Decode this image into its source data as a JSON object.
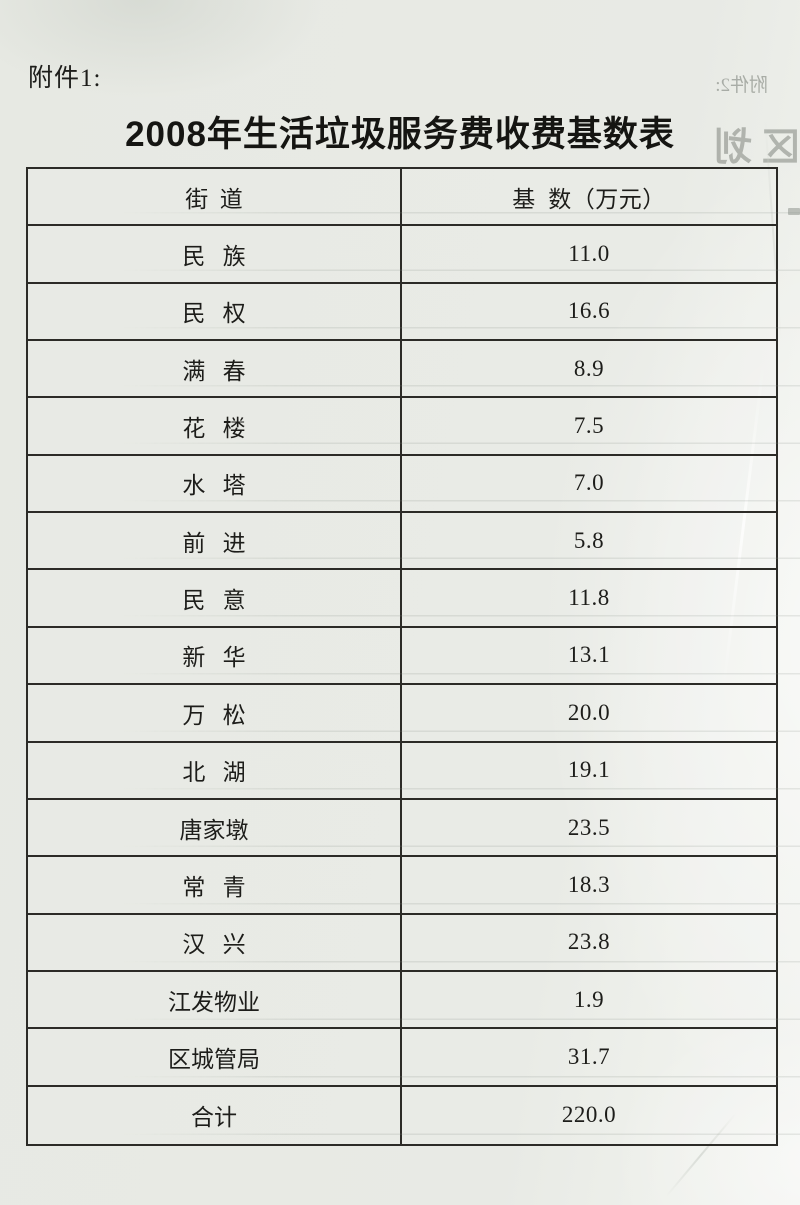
{
  "page": {
    "attachment_label": "附件1:",
    "title": "2008年生活垃圾服务费收费基数表"
  },
  "table": {
    "headers": {
      "street": "街  道",
      "base": "基  数（万元）"
    },
    "rows": [
      {
        "street": "民   族",
        "base": "11.0"
      },
      {
        "street": "民   权",
        "base": "16.6"
      },
      {
        "street": "满   春",
        "base": "8.9"
      },
      {
        "street": "花   楼",
        "base": "7.5"
      },
      {
        "street": "水   塔",
        "base": "7.0"
      },
      {
        "street": "前   进",
        "base": "5.8"
      },
      {
        "street": "民   意",
        "base": "11.8"
      },
      {
        "street": "新   华",
        "base": "13.1"
      },
      {
        "street": "万   松",
        "base": "20.0"
      },
      {
        "street": "北   湖",
        "base": "19.1"
      },
      {
        "street": "唐家墩",
        "base": "23.5"
      },
      {
        "street": "常   青",
        "base": "18.3"
      },
      {
        "street": "汉   兴",
        "base": "23.8"
      },
      {
        "street": "江发物业",
        "base": "1.9"
      },
      {
        "street": "区城管局",
        "base": "31.7"
      },
      {
        "street": "合计",
        "base": "220.0"
      }
    ],
    "total_label": "合计",
    "total_value": "220.0"
  },
  "bleedthrough": {
    "attachment2_label": "附件2:",
    "title_fragment": "区划"
  },
  "colors": {
    "paper": "#e8eae5",
    "paper_edge": "#f2f3f0",
    "ink": "#1d1d1a",
    "table_border": "#2c2b27"
  }
}
